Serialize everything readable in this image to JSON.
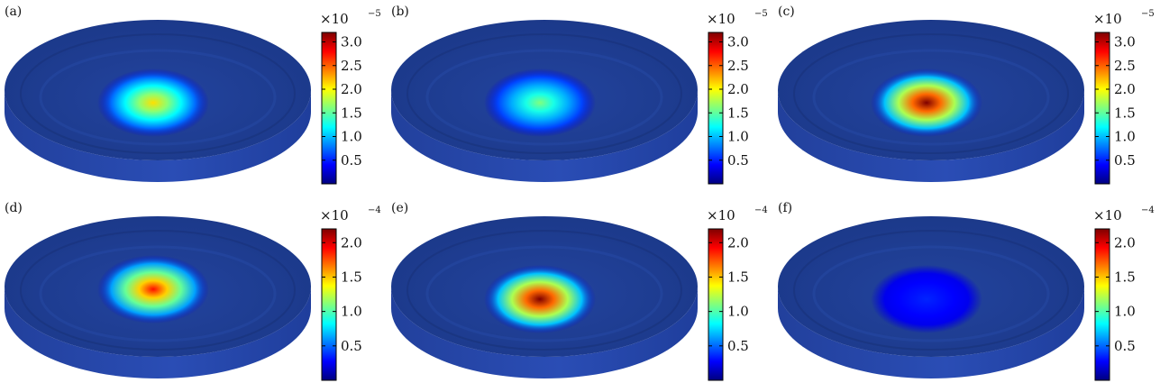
{
  "colors": {
    "jet": [
      "#00007f",
      "#0000ff",
      "#007fff",
      "#00ffff",
      "#7fff7f",
      "#ffff00",
      "#ff7f00",
      "#ff0000",
      "#7f0000"
    ],
    "disk_base": "#1e3f9a",
    "disk_side": "#2545a8"
  },
  "panels": [
    {
      "label": "(a)",
      "multiplier": "×10",
      "exponent": "−5",
      "ticks": [
        "0.5",
        "1.0",
        "1.5",
        "2.0",
        "2.5",
        "3.0"
      ],
      "tick_values": [
        0.5,
        1.0,
        1.5,
        2.0,
        2.5,
        3.0
      ],
      "cmax": 3.2,
      "spot_peak": 2.1,
      "spot_offset": "center-low"
    },
    {
      "label": "(b)",
      "multiplier": "×10",
      "exponent": "−5",
      "ticks": [
        "0.5",
        "1.0",
        "1.5",
        "2.0",
        "2.5",
        "3.0"
      ],
      "tick_values": [
        0.5,
        1.0,
        1.5,
        2.0,
        2.5,
        3.0
      ],
      "cmax": 3.2,
      "spot_peak": 1.6,
      "spot_offset": "center-low"
    },
    {
      "label": "(c)",
      "multiplier": "×10",
      "exponent": "−5",
      "ticks": [
        "0.5",
        "1.0",
        "1.5",
        "2.0",
        "2.5",
        "3.0"
      ],
      "tick_values": [
        0.5,
        1.0,
        1.5,
        2.0,
        2.5,
        3.0
      ],
      "cmax": 3.2,
      "spot_peak": 3.2,
      "spot_offset": "center-low"
    },
    {
      "label": "(d)",
      "multiplier": "×10",
      "exponent": "−4",
      "ticks": [
        "0.5",
        "1.0",
        "1.5",
        "2.0"
      ],
      "tick_values": [
        0.5,
        1.0,
        1.5,
        2.0
      ],
      "cmax": 2.2,
      "spot_peak": 1.9,
      "spot_offset": "center-high"
    },
    {
      "label": "(e)",
      "multiplier": "×10",
      "exponent": "−4",
      "ticks": [
        "0.5",
        "1.0",
        "1.5",
        "2.0"
      ],
      "tick_values": [
        0.5,
        1.0,
        1.5,
        2.0
      ],
      "cmax": 2.2,
      "spot_peak": 2.2,
      "spot_offset": "center-low"
    },
    {
      "label": "(f)",
      "multiplier": "×10",
      "exponent": "−4",
      "ticks": [
        "0.5",
        "1.0",
        "1.5",
        "2.0"
      ],
      "tick_values": [
        0.5,
        1.0,
        1.5,
        2.0
      ],
      "cmax": 2.2,
      "spot_peak": 0.35,
      "spot_offset": "center-low"
    }
  ]
}
